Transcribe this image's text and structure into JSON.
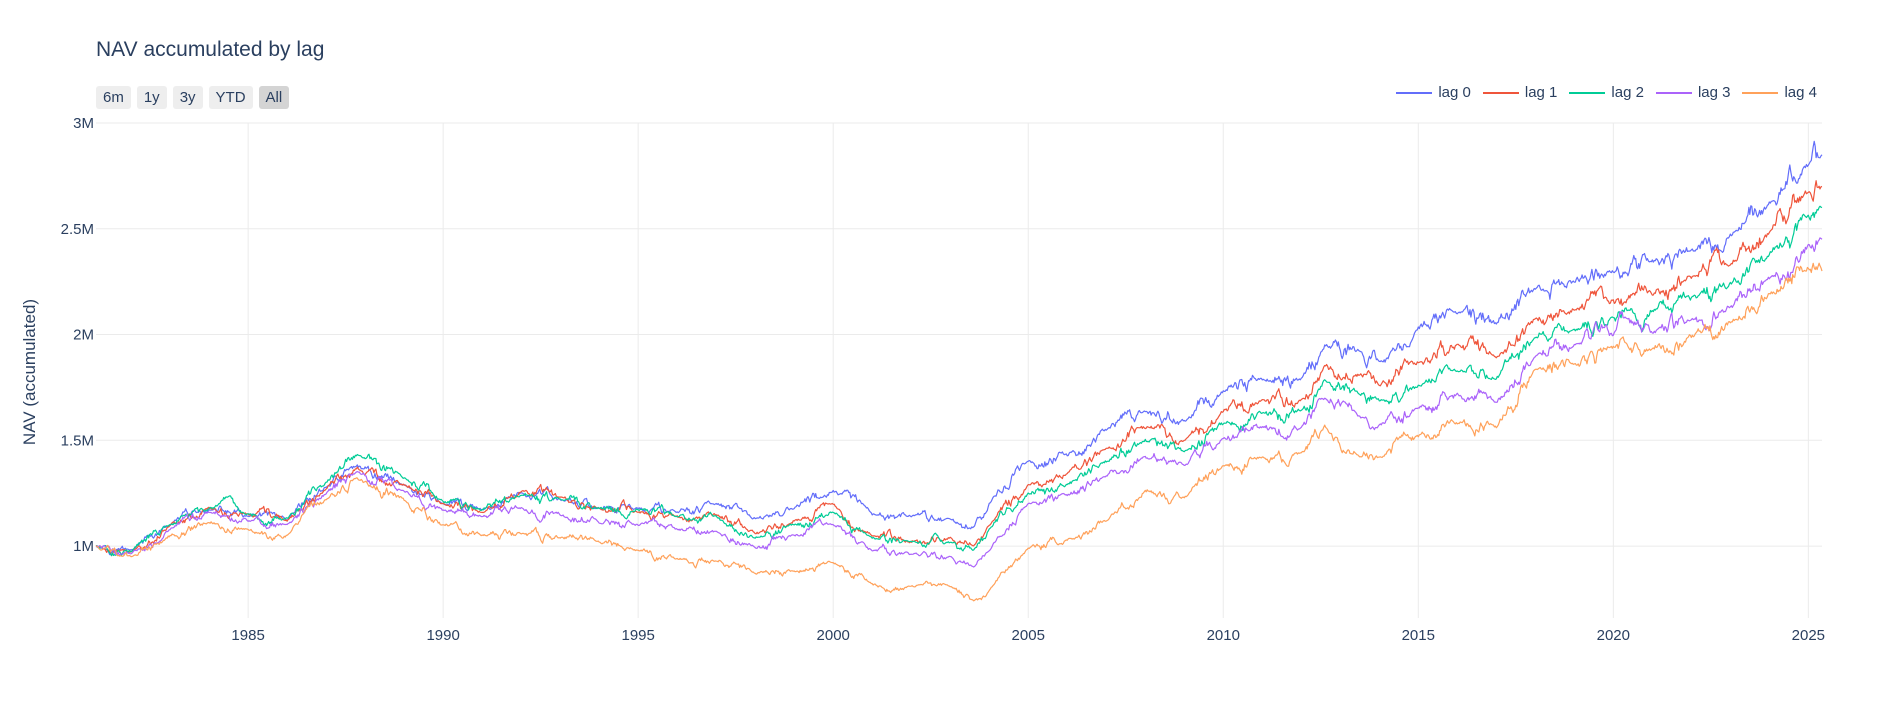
{
  "chart_data": {
    "type": "line",
    "title": "NAV accumulated by lag",
    "xlabel": "",
    "ylabel": "NAV (accumulated)",
    "xlim": [
      1981.1,
      2025.35
    ],
    "ylim": [
      660000,
      3000000
    ],
    "xticks": [
      1985,
      1990,
      1995,
      2000,
      2005,
      2010,
      2015,
      2020,
      2025
    ],
    "yticks": [
      1000000,
      1500000,
      2000000,
      2500000,
      3000000
    ],
    "ytick_labels": [
      "1M",
      "1.5M",
      "2M",
      "2.5M",
      "3M"
    ],
    "grid": true,
    "legend_position": "top-right",
    "range_selector": [
      "6m",
      "1y",
      "3y",
      "YTD",
      "All"
    ],
    "range_selector_active": "All",
    "x": [
      1981.1,
      1982,
      1983,
      1984,
      1985,
      1986,
      1987,
      1987.8,
      1989,
      1990,
      1991,
      1992,
      1993,
      1994,
      1995,
      1996,
      1997,
      1998,
      1999,
      2000,
      2001,
      2002,
      2003,
      2003.6,
      2004,
      2005,
      2006,
      2007,
      2008,
      2009,
      2010,
      2011,
      2012,
      2012.6,
      2013.5,
      2014,
      2015,
      2016,
      2017,
      2018,
      2019,
      2020,
      2020.3,
      2021,
      2022,
      2023,
      2024,
      2025,
      2025.35
    ],
    "series": [
      {
        "name": "lag 0",
        "color": "#636efa",
        "values": [
          1000000,
          980000,
          1100000,
          1170000,
          1140000,
          1120000,
          1280000,
          1380000,
          1290000,
          1200000,
          1170000,
          1250000,
          1220000,
          1180000,
          1180000,
          1160000,
          1200000,
          1130000,
          1180000,
          1260000,
          1150000,
          1140000,
          1130000,
          1090000,
          1200000,
          1400000,
          1430000,
          1550000,
          1640000,
          1590000,
          1730000,
          1790000,
          1790000,
          1950000,
          1920000,
          1870000,
          2030000,
          2100000,
          2050000,
          2220000,
          2250000,
          2300000,
          2290000,
          2350000,
          2400000,
          2470000,
          2620000,
          2800000,
          2850000
        ]
      },
      {
        "name": "lag 1",
        "color": "#ef553b",
        "values": [
          1000000,
          970000,
          1100000,
          1180000,
          1150000,
          1120000,
          1270000,
          1370000,
          1290000,
          1200000,
          1160000,
          1260000,
          1230000,
          1180000,
          1160000,
          1140000,
          1150000,
          1060000,
          1120000,
          1200000,
          1050000,
          1020000,
          1040000,
          1000000,
          1100000,
          1290000,
          1340000,
          1460000,
          1560000,
          1500000,
          1640000,
          1690000,
          1690000,
          1850000,
          1810000,
          1760000,
          1870000,
          1950000,
          1890000,
          2080000,
          2120000,
          2160000,
          2150000,
          2190000,
          2270000,
          2330000,
          2480000,
          2670000,
          2700000
        ]
      },
      {
        "name": "lag 2",
        "color": "#00cc96",
        "values": [
          1000000,
          975000,
          1100000,
          1180000,
          1150000,
          1130000,
          1300000,
          1430000,
          1320000,
          1210000,
          1170000,
          1240000,
          1220000,
          1180000,
          1170000,
          1140000,
          1140000,
          1040000,
          1100000,
          1160000,
          1040000,
          1020000,
          1020000,
          980000,
          1080000,
          1250000,
          1290000,
          1400000,
          1500000,
          1450000,
          1580000,
          1630000,
          1640000,
          1790000,
          1720000,
          1690000,
          1760000,
          1830000,
          1790000,
          1990000,
          2020000,
          2080000,
          2120000,
          2110000,
          2170000,
          2240000,
          2380000,
          2560000,
          2600000
        ]
      },
      {
        "name": "lag 3",
        "color": "#ab63fa",
        "values": [
          1000000,
          965000,
          1080000,
          1160000,
          1120000,
          1100000,
          1250000,
          1350000,
          1260000,
          1170000,
          1140000,
          1180000,
          1150000,
          1110000,
          1100000,
          1080000,
          1070000,
          990000,
          1050000,
          1100000,
          980000,
          960000,
          950000,
          900000,
          980000,
          1200000,
          1240000,
          1330000,
          1420000,
          1380000,
          1510000,
          1560000,
          1560000,
          1700000,
          1610000,
          1570000,
          1650000,
          1720000,
          1680000,
          1900000,
          1950000,
          2000000,
          2080000,
          2010000,
          2070000,
          2130000,
          2270000,
          2420000,
          2450000
        ]
      },
      {
        "name": "lag 4",
        "color": "#ffa15a",
        "values": [
          1000000,
          950000,
          1050000,
          1110000,
          1080000,
          1050000,
          1220000,
          1320000,
          1220000,
          1100000,
          1050000,
          1060000,
          1040000,
          1020000,
          980000,
          940000,
          930000,
          870000,
          880000,
          920000,
          820000,
          810000,
          810000,
          740000,
          790000,
          990000,
          1030000,
          1120000,
          1260000,
          1230000,
          1380000,
          1420000,
          1440000,
          1570000,
          1420000,
          1420000,
          1520000,
          1580000,
          1560000,
          1840000,
          1860000,
          1940000,
          1960000,
          1930000,
          1990000,
          2060000,
          2190000,
          2320000,
          2300000
        ]
      }
    ]
  }
}
